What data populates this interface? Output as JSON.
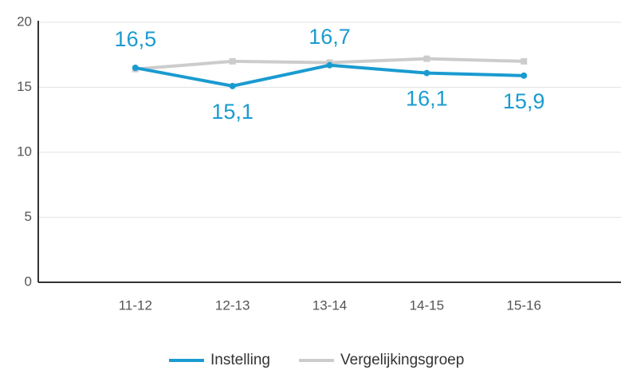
{
  "chart_data": {
    "type": "line",
    "categories": [
      "11-12",
      "12-13",
      "13-14",
      "14-15",
      "15-16"
    ],
    "series": [
      {
        "name": "Instelling",
        "color": "#1a9bd0",
        "values": [
          16.5,
          15.1,
          16.7,
          16.1,
          15.9
        ],
        "value_labels": [
          "16,5",
          "15,1",
          "16,7",
          "16,1",
          "15,9"
        ]
      },
      {
        "name": "Vergelijkingsgroep",
        "color": "#cccccc",
        "values": [
          16.4,
          17.0,
          16.9,
          17.2,
          17.0
        ]
      }
    ],
    "ylim": [
      0,
      20
    ],
    "yticks": [
      0,
      5,
      10,
      15,
      20
    ],
    "grid": true,
    "legend": "bottom"
  }
}
